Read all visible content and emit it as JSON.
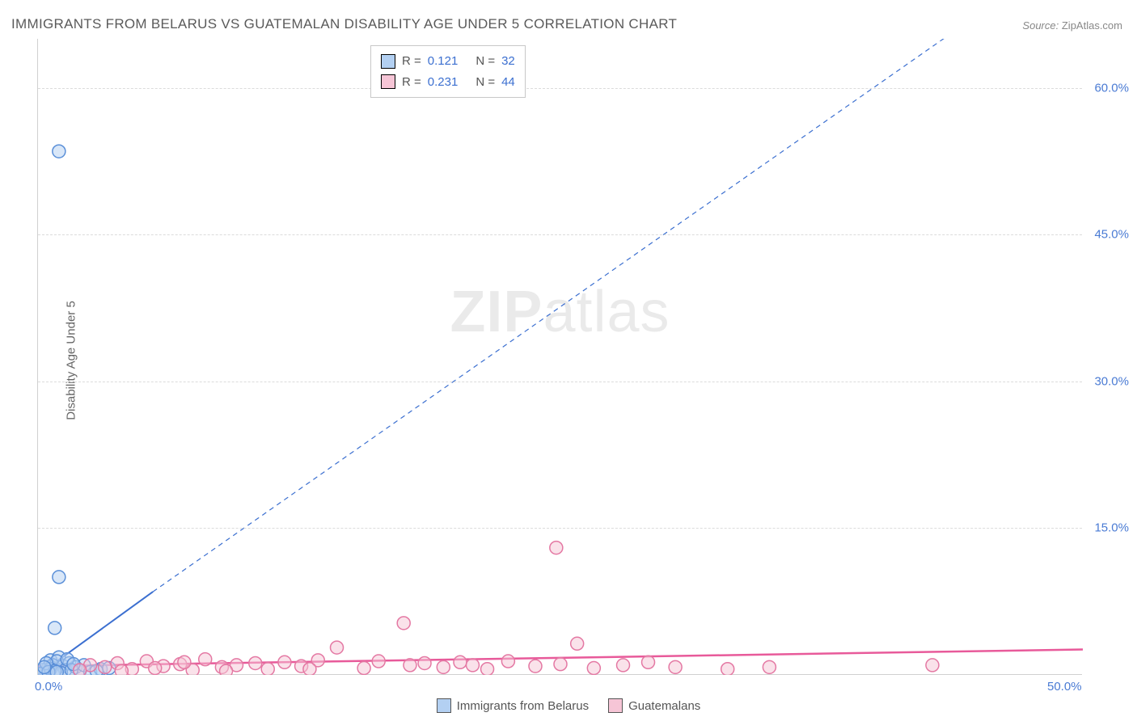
{
  "title": "IMMIGRANTS FROM BELARUS VS GUATEMALAN DISABILITY AGE UNDER 5 CORRELATION CHART",
  "source": {
    "label": "Source:",
    "value": "ZipAtlas.com"
  },
  "ylabel": "Disability Age Under 5",
  "watermark": {
    "bold": "ZIP",
    "rest": "atlas"
  },
  "chart": {
    "type": "scatter",
    "xlim": [
      0,
      50
    ],
    "ylim": [
      0,
      65
    ],
    "xticks": [
      {
        "v": 0,
        "label": "0.0%"
      },
      {
        "v": 50,
        "label": "50.0%"
      }
    ],
    "yticks": [
      {
        "v": 15,
        "label": "15.0%"
      },
      {
        "v": 30,
        "label": "30.0%"
      },
      {
        "v": 45,
        "label": "45.0%"
      },
      {
        "v": 60,
        "label": "60.0%"
      }
    ],
    "grid_color": "#dcdcdc",
    "border_color": "#d0d0d0",
    "background": "#ffffff",
    "marker_radius": 8,
    "marker_stroke_width": 1.5,
    "series": [
      {
        "name": "Immigrants from Belarus",
        "fill": "#b3d0f2",
        "stroke": "#5a8fd8",
        "fill_opacity": 0.5,
        "points": [
          [
            1.0,
            53.5
          ],
          [
            1.0,
            10.0
          ],
          [
            0.8,
            4.8
          ],
          [
            0.3,
            0.3
          ],
          [
            0.5,
            0.8
          ],
          [
            0.6,
            1.5
          ],
          [
            1.0,
            1.8
          ],
          [
            0.4,
            0.2
          ],
          [
            0.7,
            1.0
          ],
          [
            1.2,
            0.9
          ],
          [
            1.5,
            1.2
          ],
          [
            0.2,
            0.5
          ],
          [
            0.9,
            1.4
          ],
          [
            1.3,
            0.5
          ],
          [
            1.8,
            0.8
          ],
          [
            2.0,
            0.4
          ],
          [
            0.1,
            0.1
          ],
          [
            0.6,
            0.6
          ],
          [
            2.2,
            1.0
          ],
          [
            2.5,
            0.3
          ],
          [
            3.0,
            0.6
          ],
          [
            3.4,
            0.7
          ],
          [
            0.4,
            1.2
          ],
          [
            1.1,
            0.2
          ],
          [
            0.8,
            0.4
          ],
          [
            1.4,
            1.6
          ],
          [
            0.5,
            0.3
          ],
          [
            0.3,
            0.8
          ],
          [
            1.6,
            0.5
          ],
          [
            0.9,
            0.3
          ],
          [
            2.8,
            0.4
          ],
          [
            1.7,
            1.1
          ]
        ],
        "trend": {
          "x1": 0,
          "y1": 0,
          "x2": 5.5,
          "y2": 8.5,
          "dash_x2": 44,
          "dash_y2": 66,
          "stroke": "#3b6fd0",
          "width": 2.0
        }
      },
      {
        "name": "Guatemalans",
        "fill": "#f6c5d6",
        "stroke": "#e478a3",
        "fill_opacity": 0.5,
        "points": [
          [
            24.8,
            13.0
          ],
          [
            17.5,
            5.3
          ],
          [
            25.8,
            3.2
          ],
          [
            14.3,
            2.8
          ],
          [
            2.5,
            1.0
          ],
          [
            3.2,
            0.8
          ],
          [
            3.8,
            1.2
          ],
          [
            4.5,
            0.6
          ],
          [
            5.2,
            1.4
          ],
          [
            6.0,
            0.9
          ],
          [
            6.8,
            1.1
          ],
          [
            7.4,
            0.5
          ],
          [
            8.0,
            1.6
          ],
          [
            8.8,
            0.8
          ],
          [
            9.5,
            1.0
          ],
          [
            10.4,
            1.2
          ],
          [
            11.0,
            0.6
          ],
          [
            11.8,
            1.3
          ],
          [
            12.6,
            0.9
          ],
          [
            13.4,
            1.5
          ],
          [
            15.6,
            0.7
          ],
          [
            16.3,
            1.4
          ],
          [
            17.8,
            1.0
          ],
          [
            18.5,
            1.2
          ],
          [
            19.4,
            0.8
          ],
          [
            20.2,
            1.3
          ],
          [
            20.8,
            1.0
          ],
          [
            21.5,
            0.6
          ],
          [
            22.5,
            1.4
          ],
          [
            23.8,
            0.9
          ],
          [
            25.0,
            1.1
          ],
          [
            26.6,
            0.7
          ],
          [
            28.0,
            1.0
          ],
          [
            29.2,
            1.3
          ],
          [
            30.5,
            0.8
          ],
          [
            33.0,
            0.6
          ],
          [
            35.0,
            0.8
          ],
          [
            42.8,
            1.0
          ],
          [
            4.0,
            0.4
          ],
          [
            2.0,
            0.5
          ],
          [
            5.6,
            0.7
          ],
          [
            7.0,
            1.3
          ],
          [
            9.0,
            0.4
          ],
          [
            13.0,
            0.6
          ]
        ],
        "trend": {
          "x1": 0,
          "y1": 0.9,
          "x2": 50,
          "y2": 2.6,
          "stroke": "#e85a9a",
          "width": 2.5
        }
      }
    ]
  },
  "legend_top": {
    "rows": [
      {
        "swatch": "blue",
        "r_label": "R  =",
        "r_val": "0.121",
        "n_label": "N  =",
        "n_val": "32"
      },
      {
        "swatch": "pink",
        "r_label": "R  =",
        "r_val": "0.231",
        "n_label": "N  =",
        "n_val": "44"
      }
    ]
  },
  "legend_bottom": [
    {
      "swatch": "blue",
      "label": "Immigrants from Belarus"
    },
    {
      "swatch": "pink",
      "label": "Guatemalans"
    }
  ]
}
